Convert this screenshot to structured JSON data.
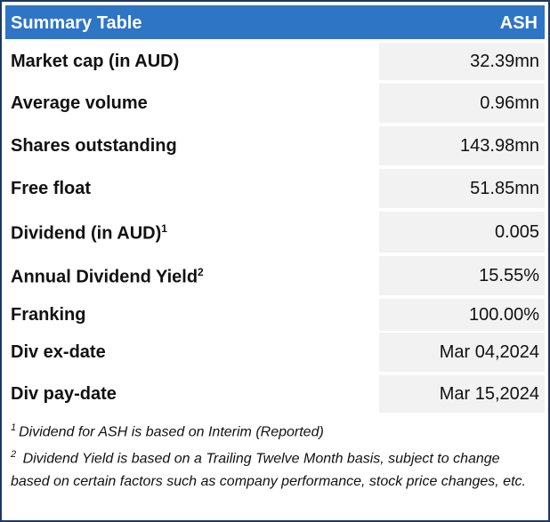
{
  "header": {
    "title": "Summary Table",
    "ticker": "ASH"
  },
  "rows": [
    {
      "label": "Market cap (in AUD)",
      "value": "32.39mn"
    },
    {
      "label": "Average volume",
      "value": "0.96mn"
    },
    {
      "label": "Shares outstanding",
      "value": "143.98mn"
    },
    {
      "label": "Free float",
      "value": "51.85mn"
    },
    {
      "label": "Dividend (in AUD)",
      "sup": "1",
      "value": "0.005"
    },
    {
      "label": "Annual Dividend Yield",
      "sup": "2",
      "value": "15.55%"
    },
    {
      "label": "Franking",
      "value": "100.00%"
    },
    {
      "label": "Div ex-date",
      "value": "Mar 04,2024"
    },
    {
      "label": "Div pay-date",
      "value": "Mar 15,2024"
    }
  ],
  "footnotes": [
    {
      "marker": "1",
      "text": "Dividend for ASH is based on Interim (Reported)"
    },
    {
      "marker": "2",
      "text": " Dividend Yield is based on a Trailing Twelve Month basis, subject to change based on certain factors such as company performance, stock price changes, etc."
    }
  ]
}
